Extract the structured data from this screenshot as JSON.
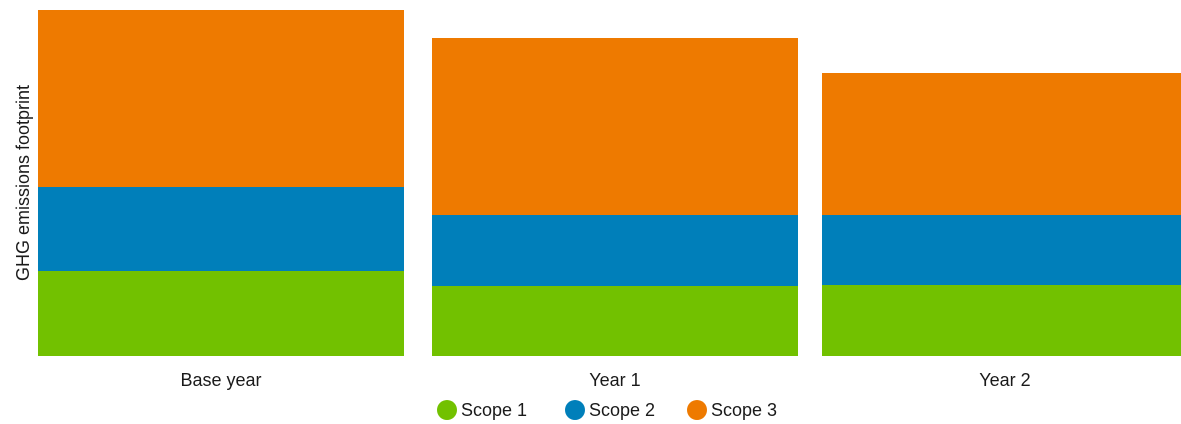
{
  "chart_data": {
    "type": "bar",
    "stacked": true,
    "categories": [
      "Base year",
      "Year 1",
      "Year 2"
    ],
    "series": [
      {
        "name": "Scope 1",
        "color": "#72C100",
        "values": [
          85,
          70,
          71
        ]
      },
      {
        "name": "Scope 2",
        "color": "#007FBA",
        "values": [
          84,
          71,
          70
        ]
      },
      {
        "name": "Scope 3",
        "color": "#EE7A00",
        "values": [
          177,
          177,
          142
        ]
      }
    ],
    "title": "",
    "xlabel": "",
    "ylabel": "GHG emissions footprint",
    "ylim": [
      0,
      346
    ],
    "grid": false,
    "y_ticks_shown": false,
    "legend_position": "bottom-center"
  }
}
